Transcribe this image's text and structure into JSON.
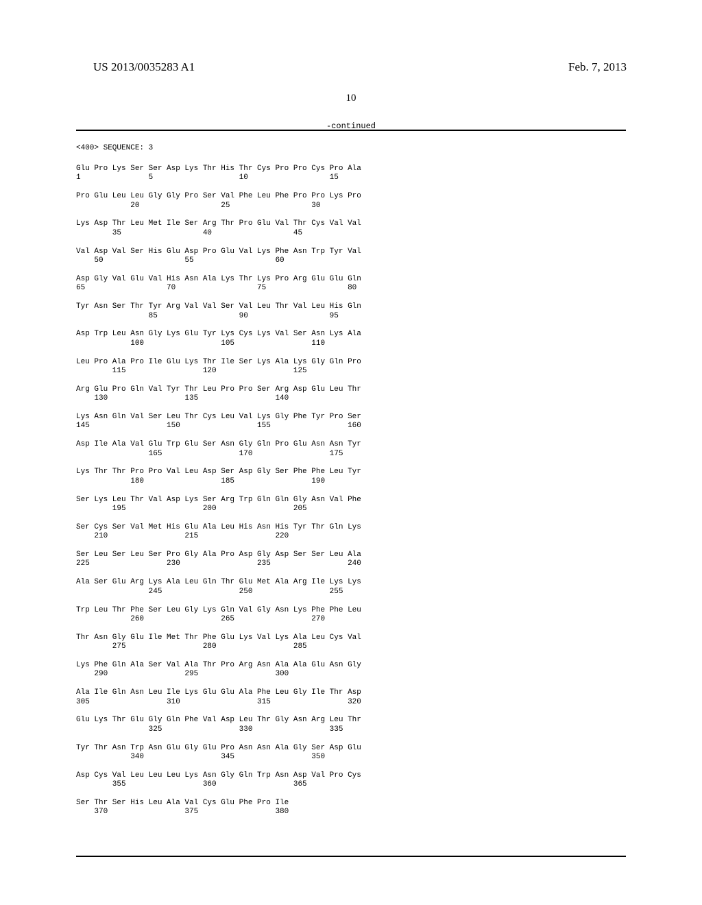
{
  "header": {
    "doc_id": "US 2013/0035283 A1",
    "date": "Feb. 7, 2013",
    "page_num": "10",
    "continued": "-continued"
  },
  "sequence": {
    "header_line": "<400> SEQUENCE: 3",
    "rows": [
      {
        "aa": "Glu Pro Lys Ser Ser Asp Lys Thr His Thr Cys Pro Pro Cys Pro Ala",
        "nm": "1               5                   10                  15"
      },
      {
        "aa": "Pro Glu Leu Leu Gly Gly Pro Ser Val Phe Leu Phe Pro Pro Lys Pro",
        "nm": "            20                  25                  30"
      },
      {
        "aa": "Lys Asp Thr Leu Met Ile Ser Arg Thr Pro Glu Val Thr Cys Val Val",
        "nm": "        35                  40                  45"
      },
      {
        "aa": "Val Asp Val Ser His Glu Asp Pro Glu Val Lys Phe Asn Trp Tyr Val",
        "nm": "    50                  55                  60"
      },
      {
        "aa": "Asp Gly Val Glu Val His Asn Ala Lys Thr Lys Pro Arg Glu Glu Gln",
        "nm": "65                  70                  75                  80"
      },
      {
        "aa": "Tyr Asn Ser Thr Tyr Arg Val Val Ser Val Leu Thr Val Leu His Gln",
        "nm": "                85                  90                  95"
      },
      {
        "aa": "Asp Trp Leu Asn Gly Lys Glu Tyr Lys Cys Lys Val Ser Asn Lys Ala",
        "nm": "            100                 105                 110"
      },
      {
        "aa": "Leu Pro Ala Pro Ile Glu Lys Thr Ile Ser Lys Ala Lys Gly Gln Pro",
        "nm": "        115                 120                 125"
      },
      {
        "aa": "Arg Glu Pro Gln Val Tyr Thr Leu Pro Pro Ser Arg Asp Glu Leu Thr",
        "nm": "    130                 135                 140"
      },
      {
        "aa": "Lys Asn Gln Val Ser Leu Thr Cys Leu Val Lys Gly Phe Tyr Pro Ser",
        "nm": "145                 150                 155                 160"
      },
      {
        "aa": "Asp Ile Ala Val Glu Trp Glu Ser Asn Gly Gln Pro Glu Asn Asn Tyr",
        "nm": "                165                 170                 175"
      },
      {
        "aa": "Lys Thr Thr Pro Pro Val Leu Asp Ser Asp Gly Ser Phe Phe Leu Tyr",
        "nm": "            180                 185                 190"
      },
      {
        "aa": "Ser Lys Leu Thr Val Asp Lys Ser Arg Trp Gln Gln Gly Asn Val Phe",
        "nm": "        195                 200                 205"
      },
      {
        "aa": "Ser Cys Ser Val Met His Glu Ala Leu His Asn His Tyr Thr Gln Lys",
        "nm": "    210                 215                 220"
      },
      {
        "aa": "Ser Leu Ser Leu Ser Pro Gly Ala Pro Asp Gly Asp Ser Ser Leu Ala",
        "nm": "225                 230                 235                 240"
      },
      {
        "aa": "Ala Ser Glu Arg Lys Ala Leu Gln Thr Glu Met Ala Arg Ile Lys Lys",
        "nm": "                245                 250                 255"
      },
      {
        "aa": "Trp Leu Thr Phe Ser Leu Gly Lys Gln Val Gly Asn Lys Phe Phe Leu",
        "nm": "            260                 265                 270"
      },
      {
        "aa": "Thr Asn Gly Glu Ile Met Thr Phe Glu Lys Val Lys Ala Leu Cys Val",
        "nm": "        275                 280                 285"
      },
      {
        "aa": "Lys Phe Gln Ala Ser Val Ala Thr Pro Arg Asn Ala Ala Glu Asn Gly",
        "nm": "    290                 295                 300"
      },
      {
        "aa": "Ala Ile Gln Asn Leu Ile Lys Glu Glu Ala Phe Leu Gly Ile Thr Asp",
        "nm": "305                 310                 315                 320"
      },
      {
        "aa": "Glu Lys Thr Glu Gly Gln Phe Val Asp Leu Thr Gly Asn Arg Leu Thr",
        "nm": "                325                 330                 335"
      },
      {
        "aa": "Tyr Thr Asn Trp Asn Glu Gly Glu Pro Asn Asn Ala Gly Ser Asp Glu",
        "nm": "            340                 345                 350"
      },
      {
        "aa": "Asp Cys Val Leu Leu Leu Lys Asn Gly Gln Trp Asn Asp Val Pro Cys",
        "nm": "        355                 360                 365"
      },
      {
        "aa": "Ser Thr Ser His Leu Ala Val Cys Glu Phe Pro Ile",
        "nm": "    370                 375                 380"
      }
    ]
  }
}
